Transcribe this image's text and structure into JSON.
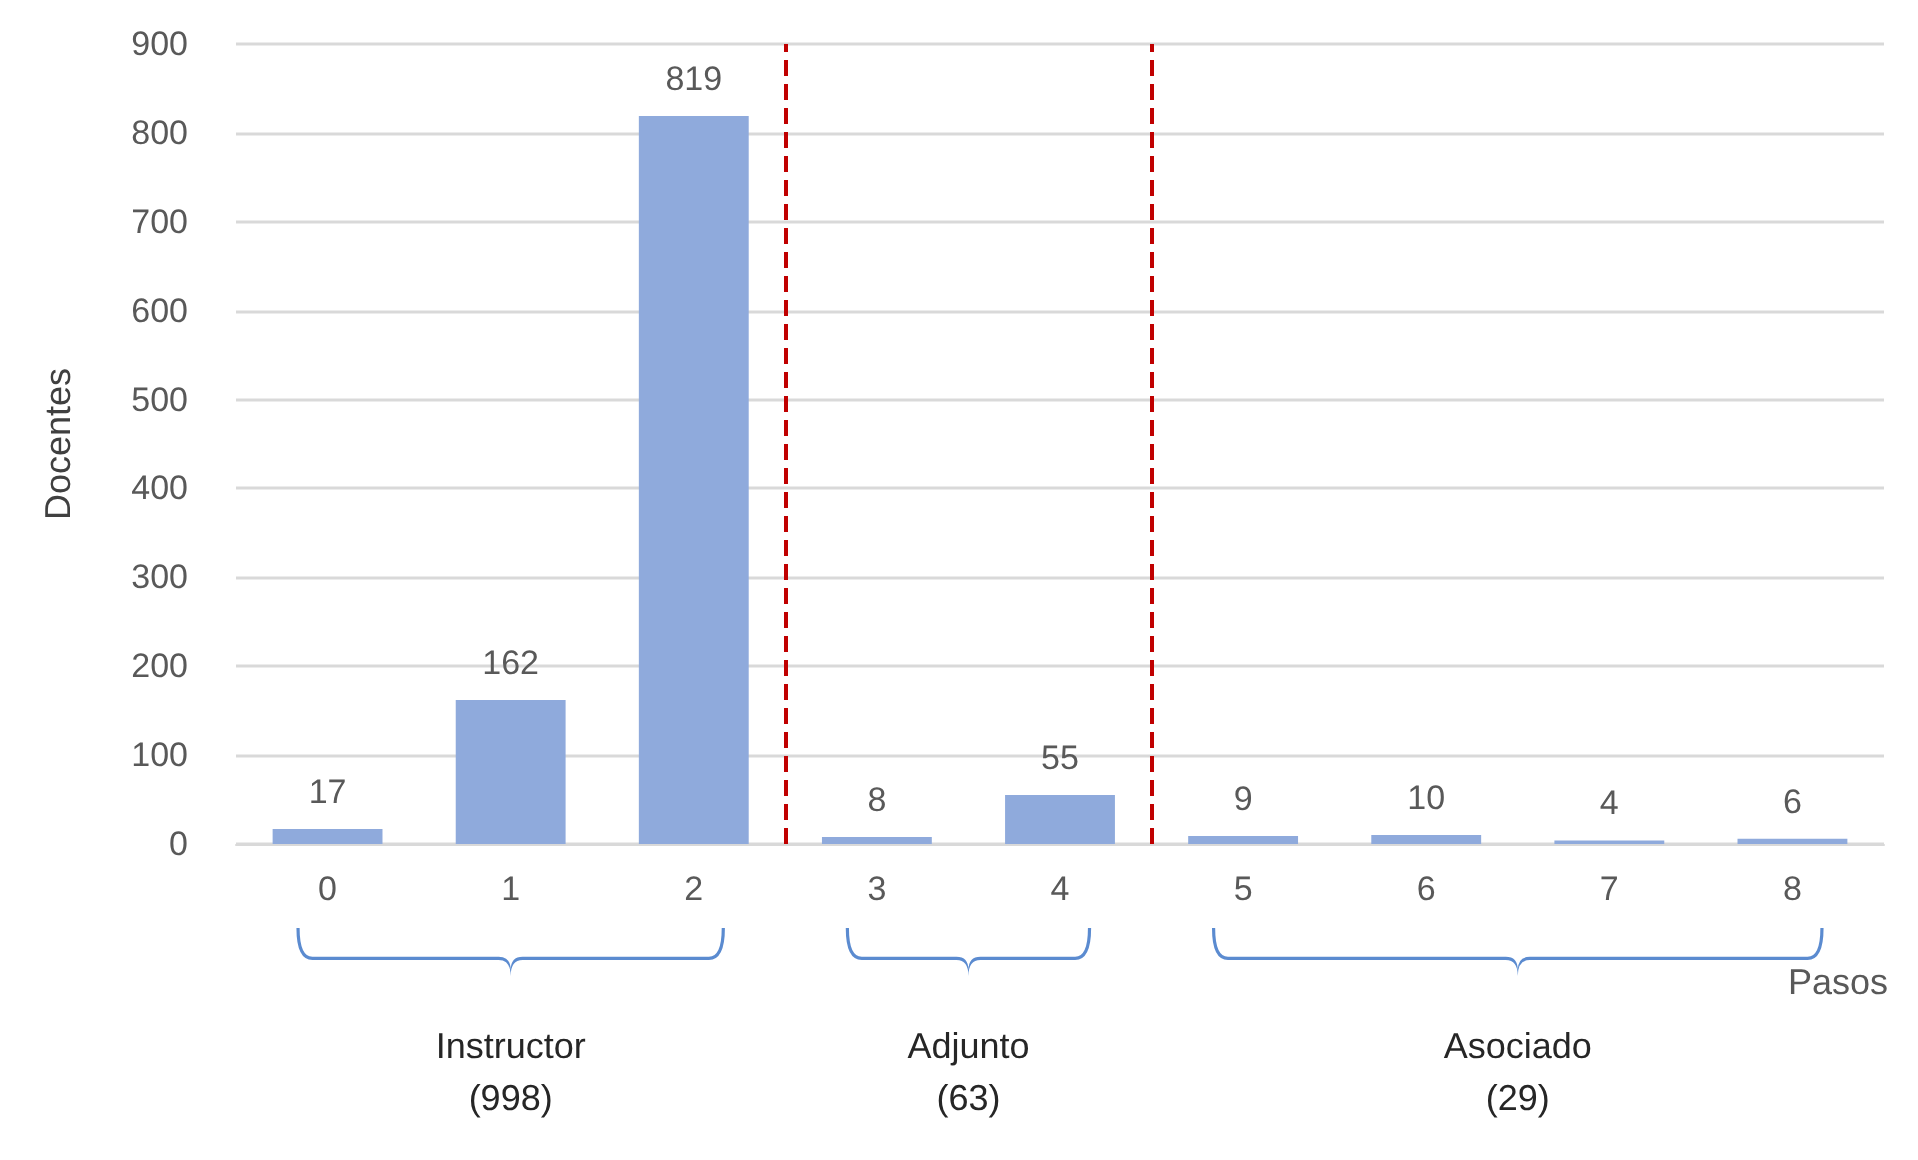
{
  "chart_data": {
    "type": "bar",
    "ylabel": "Docentes",
    "xlabel": "Pasos",
    "x": [
      0,
      1,
      2,
      3,
      4,
      5,
      6,
      7,
      8
    ],
    "values": [
      17,
      162,
      819,
      8,
      55,
      9,
      10,
      4,
      6
    ],
    "color": "#8faadc",
    "data_labels": true,
    "xlim": [
      -0.5,
      8.5
    ],
    "xticks": [
      0,
      1,
      2,
      3,
      4,
      5,
      6,
      7,
      8
    ],
    "ylim": [
      0,
      900
    ],
    "yticks": [
      0,
      100,
      200,
      300,
      400,
      500,
      600,
      700,
      800,
      900
    ],
    "grid": "y",
    "ref_lines": [
      {
        "axis": "x",
        "value": 2.5,
        "color": "#c00000",
        "line_style": "dashed"
      },
      {
        "axis": "x",
        "value": 4.5,
        "color": "#c00000",
        "line_style": "dashed"
      }
    ],
    "annotations": [
      "Instructor\n(998)",
      "Adjunto\n(63)",
      "Asociado\n(29)"
    ]
  }
}
